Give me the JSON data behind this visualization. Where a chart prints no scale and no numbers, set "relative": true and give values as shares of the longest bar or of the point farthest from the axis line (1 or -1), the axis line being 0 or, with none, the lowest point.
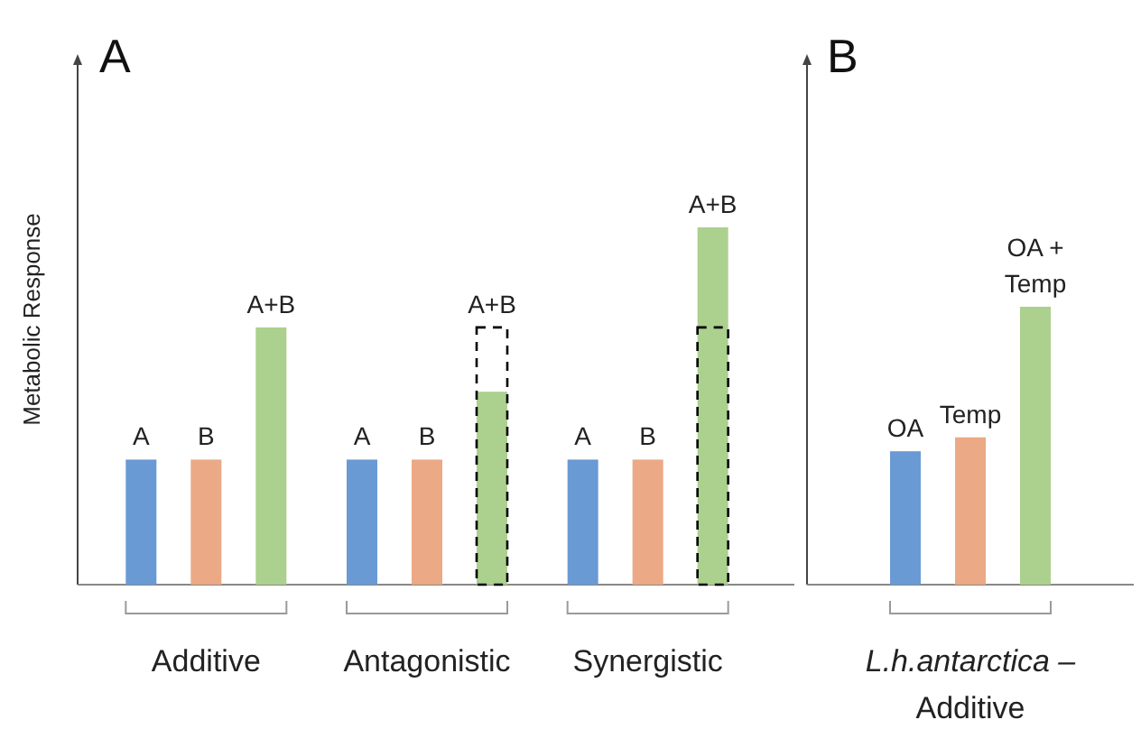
{
  "chart_data": [
    {
      "type": "bar",
      "title": "A",
      "ylabel": "Metabolic Response",
      "relative": true,
      "categories": [
        "Additive",
        "Antagonistic",
        "Synergistic"
      ],
      "series": [
        {
          "name": "A",
          "color": "#6a9ad4",
          "values": [
            0.35,
            0.35,
            0.35
          ]
        },
        {
          "name": "B",
          "color": "#eba985",
          "values": [
            0.35,
            0.35,
            0.35
          ]
        },
        {
          "name": "A+B",
          "color": "#acd08e",
          "values": [
            0.72,
            0.54,
            1
          ]
        },
        {
          "color": "#000000",
          "line_style": "dashed",
          "values": [
            null,
            0.72,
            0.72
          ]
        }
      ]
    },
    {
      "type": "bar",
      "title": "B",
      "relative": true,
      "categories": [
        "L.h.antarctica –\nAdditive"
      ],
      "series": [
        {
          "name": "OA",
          "color": "#6a9ad4",
          "values": [
            0.48
          ]
        },
        {
          "name": "Temp",
          "color": "#eba985",
          "values": [
            0.53
          ]
        },
        {
          "name": "OA + Temp",
          "color": "#acd08e",
          "values": [
            1
          ]
        }
      ]
    }
  ]
}
